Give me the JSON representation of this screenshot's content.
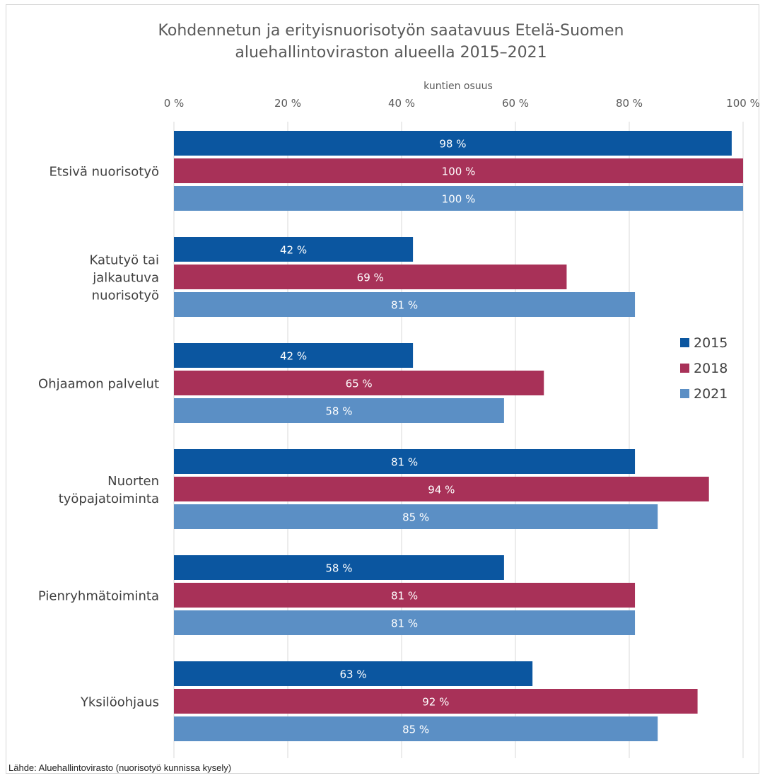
{
  "chart_data": {
    "type": "bar",
    "orientation": "horizontal",
    "title": [
      "Kohdennetun ja erityisnuorisotyön saatavuus Etelä-Suomen",
      "aluehallintoviraston alueella 2015–2021"
    ],
    "xlabel": "kuntien osuus",
    "xlim": [
      0,
      100
    ],
    "x_ticks": [
      0,
      20,
      40,
      60,
      80,
      100
    ],
    "x_tick_labels": [
      "0 %",
      "20 %",
      "40 %",
      "60 %",
      "80 %",
      "100 %"
    ],
    "x_axis_position": "top",
    "grid": true,
    "legend_position": "right",
    "categories": [
      [
        "Etsivä nuorisotyö"
      ],
      [
        "Katutyö tai",
        "jalkautuva",
        "nuorisotyö"
      ],
      [
        "Ohjaamon palvelut"
      ],
      [
        "Nuorten",
        "työpajatoiminta"
      ],
      [
        "Pienryhmätoiminta"
      ],
      [
        "Yksilöohjaus"
      ]
    ],
    "series": [
      {
        "name": "2015",
        "color": "#0b56a0",
        "values": [
          98,
          42,
          42,
          81,
          58,
          63
        ],
        "labels": [
          "98 %",
          "42 %",
          "42 %",
          "81 %",
          "58 %",
          "63 %"
        ]
      },
      {
        "name": "2018",
        "color": "#a83158",
        "values": [
          100,
          69,
          65,
          94,
          81,
          92
        ],
        "labels": [
          "100 %",
          "69 %",
          "65 %",
          "94 %",
          "81 %",
          "92 %"
        ]
      },
      {
        "name": "2021",
        "color": "#5b8fc5",
        "values": [
          100,
          81,
          58,
          85,
          81,
          85
        ],
        "labels": [
          "100 %",
          "81 %",
          "58 %",
          "85 %",
          "81 %",
          "85 %"
        ]
      }
    ]
  },
  "source": "Lähde: Aluehallintovirasto (nuorisotyö kunnissa kysely)"
}
